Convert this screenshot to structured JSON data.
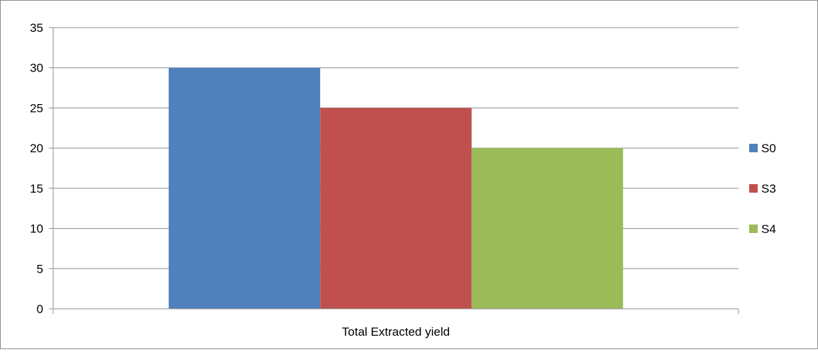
{
  "chart_data": {
    "type": "bar",
    "categories": [
      "Total Extracted yield"
    ],
    "series": [
      {
        "name": "S0",
        "values": [
          30
        ],
        "color": "#4f81bd"
      },
      {
        "name": "S3",
        "values": [
          25
        ],
        "color": "#c0504d"
      },
      {
        "name": "S4",
        "values": [
          20
        ],
        "color": "#9bbb59"
      }
    ],
    "ylim": [
      0,
      35
    ],
    "yticks": [
      0,
      5,
      10,
      15,
      20,
      25,
      30,
      35
    ],
    "grid": true,
    "legend_position": "right",
    "gridline_color": "#8c8c8c",
    "axis_color": "#8c8c8c"
  }
}
